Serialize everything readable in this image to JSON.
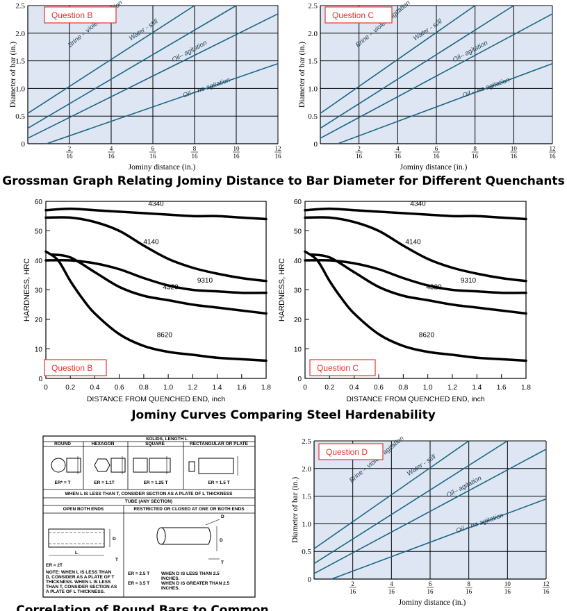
{
  "captions": {
    "grossman": "Grossman Graph Relating Jominy Distance to Bar Diameter for Different Quenchants",
    "jominy": "Jominy Curves Comparing Steel Hardenability",
    "correlation": "Correlation of Round Bars to Common"
  },
  "colors": {
    "grossman_bg": "#dde6f2",
    "grossman_line": "#1a6585",
    "question_box": "#e8322c",
    "jominy_line": "#000000"
  },
  "chart_data": [
    {
      "type": "line",
      "id": "grossman-b",
      "label": "Question B",
      "xlabel": "Jominy distance (in.)",
      "ylabel": "Diameter of bar (in.)",
      "xlim": [
        0,
        12
      ],
      "ylim": [
        0,
        2.5
      ],
      "x_ticks": [
        "2/16",
        "4/16",
        "6/16",
        "8/16",
        "10/16",
        "12/16"
      ],
      "y_ticks": [
        "0",
        "0.5",
        "1.0",
        "1.5",
        "2.0",
        "2.5"
      ],
      "grid": true,
      "series": [
        {
          "name": "Brine – violent agitation",
          "x": [
            0,
            8.0
          ],
          "y": [
            0.55,
            2.5
          ]
        },
        {
          "name": "Water - still",
          "x": [
            0,
            10.0
          ],
          "y": [
            0.28,
            2.5
          ]
        },
        {
          "name": "Oil– agitation",
          "x": [
            0,
            12.0
          ],
          "y": [
            0.1,
            2.35
          ]
        },
        {
          "name": "Oil – no agitation",
          "x": [
            0.9,
            12.0
          ],
          "y": [
            0.0,
            1.45
          ]
        }
      ]
    },
    {
      "type": "line",
      "id": "grossman-c",
      "label": "Question C",
      "xlabel": "Jominy distance (in.)",
      "ylabel": "Diameter of bar (in.)",
      "xlim": [
        0,
        12
      ],
      "ylim": [
        0,
        2.5
      ],
      "x_ticks": [
        "2/16",
        "4/16",
        "6/16",
        "8/16",
        "10/16",
        "12/16"
      ],
      "y_ticks": [
        "0",
        "0.5",
        "1.0",
        "1.5",
        "2.0",
        "2.5"
      ],
      "grid": true,
      "series": [
        {
          "name": "Brine – violent agitation",
          "x": [
            0,
            8.0
          ],
          "y": [
            0.55,
            2.5
          ]
        },
        {
          "name": "Water - still",
          "x": [
            0,
            10.0
          ],
          "y": [
            0.28,
            2.5
          ]
        },
        {
          "name": "Oil– agitation",
          "x": [
            0,
            12.0
          ],
          "y": [
            0.1,
            2.35
          ]
        },
        {
          "name": "Oil – no agitation",
          "x": [
            0.9,
            12.0
          ],
          "y": [
            0.0,
            1.45
          ]
        }
      ]
    },
    {
      "type": "line",
      "id": "grossman-d",
      "label": "Question D",
      "xlabel": "Jominy distance (in.)",
      "ylabel": "Diameter of bar (in.)",
      "xlim": [
        0,
        12
      ],
      "ylim": [
        0,
        2.5
      ],
      "x_ticks": [
        "2/16",
        "4/16",
        "6/16",
        "8/16",
        "10/16",
        "12/16"
      ],
      "y_ticks": [
        "0",
        "0.5",
        "1.0",
        "1.5",
        "2.0",
        "2.5"
      ],
      "grid": true,
      "series": [
        {
          "name": "Brine – violent agitation",
          "x": [
            0,
            8.0
          ],
          "y": [
            0.55,
            2.5
          ]
        },
        {
          "name": "Water - still",
          "x": [
            0,
            10.0
          ],
          "y": [
            0.28,
            2.5
          ]
        },
        {
          "name": "Oil– agitation",
          "x": [
            0,
            12.0
          ],
          "y": [
            0.1,
            2.35
          ]
        },
        {
          "name": "Oil – no agitation",
          "x": [
            0.9,
            12.0
          ],
          "y": [
            0.0,
            1.45
          ]
        }
      ]
    },
    {
      "type": "line",
      "id": "jominy-b",
      "label": "Question B",
      "xlabel": "DISTANCE FROM QUENCHED END, inch",
      "ylabel": "HARDNESS, HRC",
      "xlim": [
        0,
        1.8
      ],
      "ylim": [
        0,
        60
      ],
      "x_ticks": [
        "0",
        "0.2",
        "0.4",
        "0.6",
        "0.8",
        "1.0",
        "1.2",
        "1.4",
        "1.6",
        "1.8"
      ],
      "y_ticks": [
        "0",
        "10",
        "20",
        "30",
        "40",
        "50",
        "60"
      ],
      "series": [
        {
          "name": "4340",
          "x": [
            0,
            0.2,
            0.4,
            0.6,
            0.8,
            1.0,
            1.2,
            1.4,
            1.6,
            1.8
          ],
          "y": [
            57,
            57.5,
            57,
            56.5,
            56,
            55.5,
            55,
            55,
            54.5,
            54
          ]
        },
        {
          "name": "4140",
          "x": [
            0,
            0.2,
            0.4,
            0.6,
            0.8,
            1.0,
            1.2,
            1.4,
            1.6,
            1.8
          ],
          "y": [
            54.5,
            54.5,
            53,
            50,
            45,
            40.5,
            37.5,
            35.5,
            34,
            33
          ]
        },
        {
          "name": "9310",
          "x": [
            0,
            0.2,
            0.4,
            0.6,
            0.8,
            1.0,
            1.2,
            1.4,
            1.6,
            1.8
          ],
          "y": [
            40,
            40,
            39,
            37,
            34,
            31.5,
            30,
            29.5,
            29,
            29
          ]
        },
        {
          "name": "4320",
          "x": [
            0.05,
            0.2,
            0.4,
            0.6,
            0.8,
            1.0,
            1.2,
            1.4,
            1.6,
            1.8
          ],
          "y": [
            42,
            41,
            36,
            31,
            28,
            26.5,
            25,
            24,
            23,
            22
          ]
        },
        {
          "name": "8620",
          "x": [
            0,
            0.1,
            0.2,
            0.3,
            0.4,
            0.6,
            0.8,
            1.0,
            1.2,
            1.4,
            1.6,
            1.8
          ],
          "y": [
            43,
            40,
            33,
            27,
            22,
            15,
            11,
            9,
            8,
            7,
            6.5,
            6
          ]
        }
      ]
    },
    {
      "type": "line",
      "id": "jominy-c",
      "label": "Question C",
      "xlabel": "DISTANCE FROM QUENCHED END, inch",
      "ylabel": "HARDNESS, HRC",
      "xlim": [
        0,
        1.8
      ],
      "ylim": [
        0,
        60
      ],
      "x_ticks": [
        "0",
        "0.2",
        "0.4",
        "0.6",
        "0.8",
        "1.0",
        "1.2",
        "1.4",
        "1.6",
        "1.8"
      ],
      "y_ticks": [
        "0",
        "10",
        "20",
        "30",
        "40",
        "50",
        "60"
      ],
      "series": [
        {
          "name": "4340",
          "x": [
            0,
            0.2,
            0.4,
            0.6,
            0.8,
            1.0,
            1.2,
            1.4,
            1.6,
            1.8
          ],
          "y": [
            57,
            57.5,
            57,
            56.5,
            56,
            55.5,
            55,
            55,
            54.5,
            54
          ]
        },
        {
          "name": "4140",
          "x": [
            0,
            0.2,
            0.4,
            0.6,
            0.8,
            1.0,
            1.2,
            1.4,
            1.6,
            1.8
          ],
          "y": [
            54.5,
            54.5,
            53,
            50,
            45,
            40.5,
            37.5,
            35.5,
            34,
            33
          ]
        },
        {
          "name": "9310",
          "x": [
            0,
            0.2,
            0.4,
            0.6,
            0.8,
            1.0,
            1.2,
            1.4,
            1.6,
            1.8
          ],
          "y": [
            40,
            40,
            39,
            37,
            34,
            31.5,
            30,
            29.5,
            29,
            29
          ]
        },
        {
          "name": "4320",
          "x": [
            0.05,
            0.2,
            0.4,
            0.6,
            0.8,
            1.0,
            1.2,
            1.4,
            1.6,
            1.8
          ],
          "y": [
            42,
            41,
            36,
            31,
            28,
            26.5,
            25,
            24,
            23,
            22
          ]
        },
        {
          "name": "8620",
          "x": [
            0,
            0.1,
            0.2,
            0.3,
            0.4,
            0.6,
            0.8,
            1.0,
            1.2,
            1.4,
            1.6,
            1.8
          ],
          "y": [
            43,
            40,
            33,
            27,
            22,
            15,
            11,
            9,
            8,
            7,
            6.5,
            6
          ]
        }
      ]
    }
  ],
  "table": {
    "title": "SOLIDS, LENGTH L",
    "headers": [
      "ROUND",
      "HEXAGON",
      "SQUARE",
      "RECTANGULAR OR PLATE"
    ],
    "er": [
      "ER* = T",
      "ER = 1.1T",
      "ER = 1.25 T",
      "ER = 1.5 T"
    ],
    "plate_note": "WHEN L IS LESS THAN T, CONSIDER SECTION AS A PLATE OF L THICKNESS",
    "tube_title": "TUBE (ANY SECTION)",
    "tube_headers": [
      "OPEN BOTH ENDS",
      "RESTRICTED OR CLOSED AT ONE OR BOTH ENDS"
    ],
    "er_2t": "ER = 2T",
    "note_left": "NOTE:  WHEN L IS LESS THAN D, CONSIDER AS A PLATE OF T THICKNESS. WHEN L IS LESS THAN T, CONSIDER SECTION AS A PLATE OF L THICKNESS.",
    "er_25": "ER = 2.5 T",
    "er_35": "ER = 3.5 T",
    "note_25": "WHEN D IS LESS THAN 2.5 INCHES.",
    "note_35": "WHEN D IS GREATER THAN 2.5 INCHES.",
    "dim_L": "L",
    "dim_T": "T",
    "dim_D": "D"
  }
}
